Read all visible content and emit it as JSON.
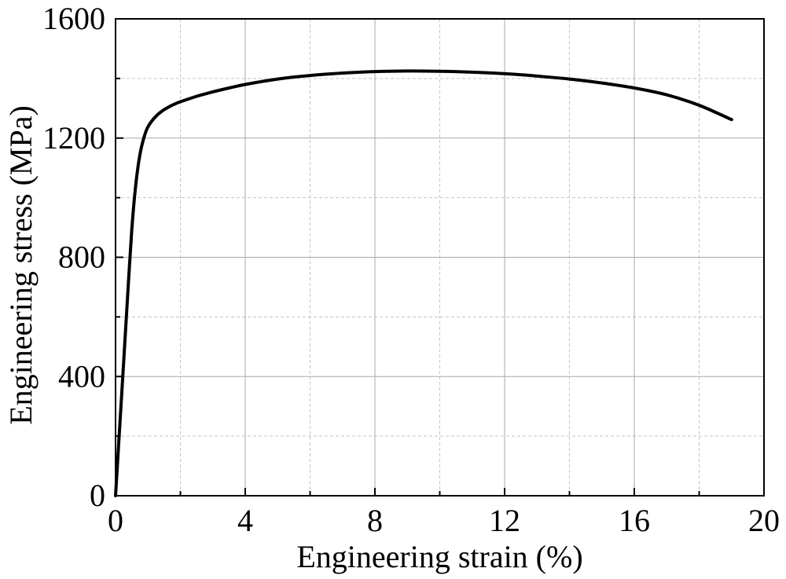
{
  "chart_data": {
    "type": "line",
    "xlabel": "Engineering strain (%)",
    "ylabel": "Engineering stress (MPa)",
    "xlim": [
      0,
      20
    ],
    "ylim": [
      0,
      1600
    ],
    "xticks": [
      0,
      4,
      8,
      12,
      16,
      20
    ],
    "yticks": [
      0,
      400,
      800,
      1200,
      1600
    ],
    "x_minor_ticks": [
      2,
      6,
      10,
      14,
      18
    ],
    "y_minor_ticks": [
      200,
      600,
      1000,
      1400
    ],
    "grid": true,
    "grid_major_style": "solid",
    "grid_minor_style": "dashed",
    "line_color": "#000000",
    "series": [
      {
        "x": [
          0,
          0.1,
          0.2,
          0.3,
          0.4,
          0.5,
          0.6,
          0.7,
          0.8,
          0.9,
          1.0,
          1.2,
          1.4,
          1.6,
          1.8,
          2.0,
          2.5,
          3.0,
          3.5,
          4.0,
          5.0,
          6.0,
          7.0,
          8.0,
          9.0,
          10.0,
          11.0,
          12.0,
          13.0,
          14.0,
          15.0,
          16.0,
          17.0,
          18.0,
          19.0
        ],
        "y": [
          0,
          180,
          360,
          540,
          720,
          890,
          1020,
          1110,
          1170,
          1210,
          1238,
          1268,
          1288,
          1302,
          1313,
          1322,
          1340,
          1355,
          1368,
          1380,
          1398,
          1410,
          1418,
          1423,
          1425,
          1424,
          1421,
          1416,
          1408,
          1398,
          1385,
          1368,
          1345,
          1310,
          1262
        ]
      }
    ]
  }
}
